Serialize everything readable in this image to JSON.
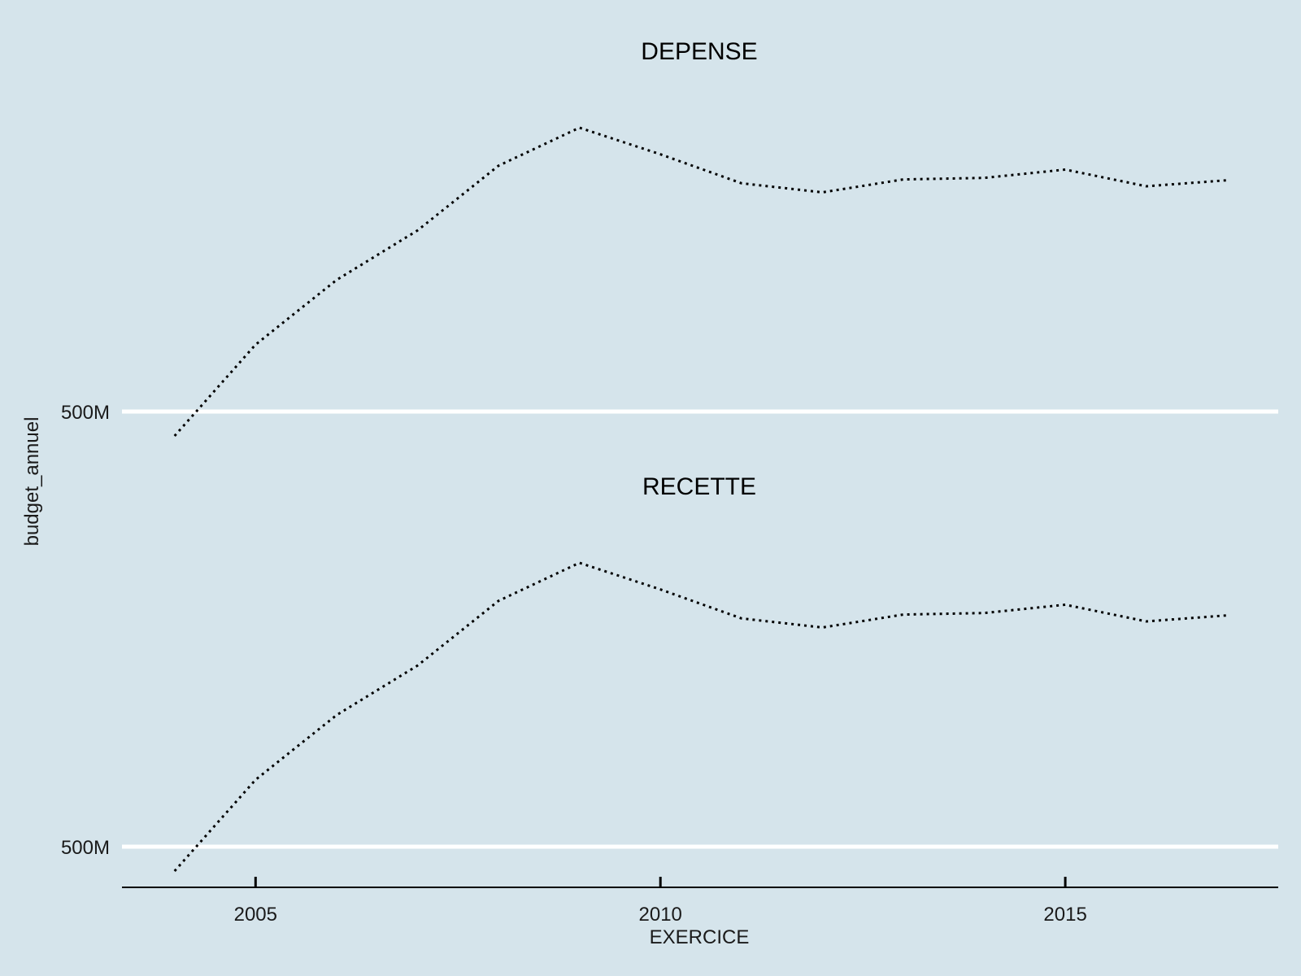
{
  "chart_data": {
    "type": "line",
    "xlabel": "EXERCICE",
    "ylabel": "budget_annuel",
    "x_ticks": [
      2005,
      2010,
      2015
    ],
    "y_tick_label": "500M",
    "y_tick_value": 500000000,
    "ylim": [
      470000000,
      1000000000
    ],
    "xlim": [
      2003.35,
      2017.63
    ],
    "grid": "horizontal major only",
    "x": [
      2004,
      2005,
      2006,
      2007,
      2008,
      2009,
      2010,
      2011,
      2012,
      2013,
      2014,
      2015,
      2016,
      2017
    ],
    "series": [
      {
        "name": "DEPENSE",
        "values": [
          470000000,
          590000000,
          675000000,
          740000000,
          825000000,
          875000000,
          840000000,
          802000000,
          790000000,
          807000000,
          809000000,
          820000000,
          798000000,
          806000000
        ]
      },
      {
        "name": "RECETTE",
        "values": [
          470000000,
          590000000,
          675000000,
          740000000,
          825000000,
          875000000,
          840000000,
          802000000,
          790000000,
          807000000,
          809000000,
          820000000,
          798000000,
          806000000
        ]
      }
    ]
  }
}
